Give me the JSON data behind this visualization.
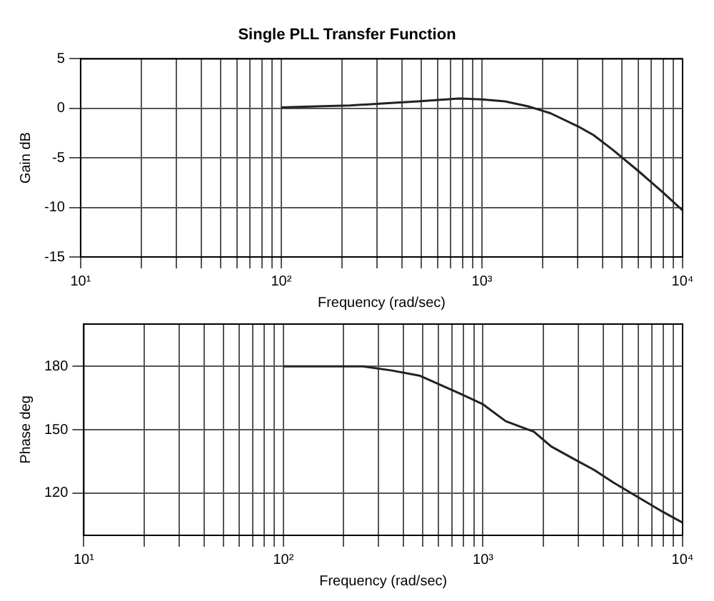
{
  "chart_data": [
    {
      "type": "line",
      "title": "Single PLL Transfer Function",
      "xlabel": "Frequency (rad/sec)",
      "ylabel": "Gain dB",
      "log": "x",
      "grid": true,
      "marker": "none",
      "line_style": "solid",
      "xlim": [
        10,
        10000
      ],
      "ylim": [
        -15,
        5
      ],
      "yticks": [
        5,
        0,
        -5,
        -10,
        -15
      ],
      "xticks": [
        {
          "value": 10,
          "label": "10¹"
        },
        {
          "value": 20,
          "label": null
        },
        {
          "value": 30,
          "label": null
        },
        {
          "value": 40,
          "label": null
        },
        {
          "value": 50,
          "label": null
        },
        {
          "value": 60,
          "label": null
        },
        {
          "value": 70,
          "label": null
        },
        {
          "value": 80,
          "label": null
        },
        {
          "value": 90,
          "label": null
        },
        {
          "value": 100,
          "label": "10²"
        },
        {
          "value": 200,
          "label": null
        },
        {
          "value": 300,
          "label": null
        },
        {
          "value": 400,
          "label": null
        },
        {
          "value": 500,
          "label": null
        },
        {
          "value": 600,
          "label": null
        },
        {
          "value": 700,
          "label": null
        },
        {
          "value": 800,
          "label": null
        },
        {
          "value": 900,
          "label": null
        },
        {
          "value": 1000,
          "label": "10³"
        },
        {
          "value": 2000,
          "label": null
        },
        {
          "value": 3000,
          "label": null
        },
        {
          "value": 4000,
          "label": null
        },
        {
          "value": 5000,
          "label": null
        },
        {
          "value": 6000,
          "label": null
        },
        {
          "value": 7000,
          "label": null
        },
        {
          "value": 8000,
          "label": null
        },
        {
          "value": 9000,
          "label": null
        },
        {
          "value": 10000,
          "label": "10⁴"
        }
      ],
      "series": [
        {
          "color": "#222222",
          "x": [
            100,
            150,
            220,
            330,
            480,
            770,
            1000,
            1300,
            1700,
            2200,
            3000,
            3600,
            4500,
            6000,
            8000,
            10000
          ],
          "values": [
            0.1,
            0.2,
            0.3,
            0.5,
            0.7,
            1.0,
            0.9,
            0.7,
            0.2,
            -0.5,
            -1.8,
            -2.7,
            -4.2,
            -6.3,
            -8.5,
            -10.3
          ]
        }
      ]
    },
    {
      "type": "line",
      "xlabel": "Frequency (rad/sec)",
      "ylabel": "Phase deg",
      "log": "x",
      "grid": true,
      "marker": "none",
      "line_style": "solid",
      "xlim": [
        10,
        10000
      ],
      "ylim": [
        100,
        200
      ],
      "yticks": [
        180,
        150,
        120
      ],
      "xticks": [
        {
          "value": 10,
          "label": "10¹"
        },
        {
          "value": 20,
          "label": null
        },
        {
          "value": 30,
          "label": null
        },
        {
          "value": 40,
          "label": null
        },
        {
          "value": 50,
          "label": null
        },
        {
          "value": 60,
          "label": null
        },
        {
          "value": 70,
          "label": null
        },
        {
          "value": 80,
          "label": null
        },
        {
          "value": 90,
          "label": null
        },
        {
          "value": 100,
          "label": "10²"
        },
        {
          "value": 200,
          "label": null
        },
        {
          "value": 300,
          "label": null
        },
        {
          "value": 400,
          "label": null
        },
        {
          "value": 500,
          "label": null
        },
        {
          "value": 600,
          "label": null
        },
        {
          "value": 700,
          "label": null
        },
        {
          "value": 800,
          "label": null
        },
        {
          "value": 900,
          "label": null
        },
        {
          "value": 1000,
          "label": "10³"
        },
        {
          "value": 2000,
          "label": null
        },
        {
          "value": 3000,
          "label": null
        },
        {
          "value": 4000,
          "label": null
        },
        {
          "value": 5000,
          "label": null
        },
        {
          "value": 6000,
          "label": null
        },
        {
          "value": 7000,
          "label": null
        },
        {
          "value": 8000,
          "label": null
        },
        {
          "value": 9000,
          "label": null
        },
        {
          "value": 10000,
          "label": "10⁴"
        }
      ],
      "series": [
        {
          "color": "#222222",
          "x": [
            100,
            150,
            250,
            350,
            480,
            770,
            1000,
            1300,
            1800,
            2200,
            3000,
            3600,
            4500,
            6000,
            8000,
            10000
          ],
          "values": [
            180,
            180,
            180,
            178,
            175.6,
            167,
            162,
            154,
            149,
            142,
            135,
            131,
            125,
            118,
            111,
            106
          ]
        }
      ]
    }
  ]
}
